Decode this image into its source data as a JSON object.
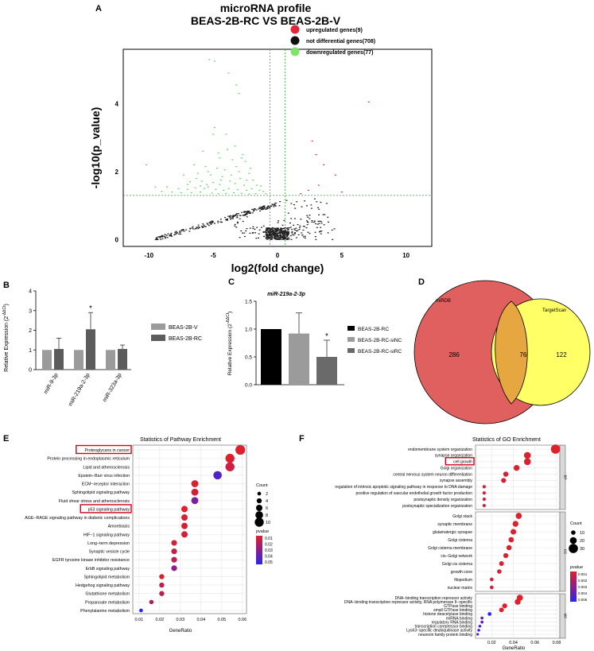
{
  "panels": {
    "A": "A",
    "B": "B",
    "C": "C",
    "D": "D",
    "E": "E",
    "F": "F"
  },
  "chart_data": [
    {
      "id": "A",
      "type": "scatter",
      "title": "microRNA profile",
      "subtitle": "BEAS-2B-RC VS BEAS-2B-V",
      "xlabel": "log2(fold change)",
      "ylabel": "-log10(p_value)",
      "xlim": [
        -12,
        12
      ],
      "ylim": [
        -0.2,
        5.6
      ],
      "xticks": [
        -10,
        -5,
        0,
        5,
        10
      ],
      "yticks": [
        0,
        2,
        4
      ],
      "thresholds": {
        "x": [
          -0.58,
          0.58
        ],
        "y": 1.3
      },
      "legend": [
        "upregulated genes(9)",
        "not differential genes(708)",
        "downregulated genes(77)"
      ],
      "colors": {
        "up": "#e32636",
        "not": "#111111",
        "down": "#5fd35f"
      },
      "series": [
        {
          "name": "upregulated genes(9)",
          "points": [
            [
              7.1,
              4.05
            ],
            [
              2.7,
              2.9
            ],
            [
              3.0,
              2.5
            ],
            [
              3.6,
              2.2
            ],
            [
              4.5,
              1.9
            ],
            [
              3.2,
              1.6
            ],
            [
              5.0,
              1.4
            ],
            [
              2.4,
              1.45
            ],
            [
              1.8,
              1.35
            ]
          ]
        },
        {
          "name": "downregulated genes(77)",
          "points": [
            [
              -5.3,
              5.3
            ],
            [
              -4.9,
              5.25
            ],
            [
              -3.8,
              4.9
            ],
            [
              -3.2,
              4.55
            ],
            [
              -3.0,
              4.3
            ],
            [
              -4.9,
              3.3
            ],
            [
              -5.0,
              3.1
            ],
            [
              -4.0,
              3.1
            ],
            [
              -3.9,
              2.65
            ],
            [
              -2.7,
              2.5
            ],
            [
              -5.8,
              2.6
            ],
            [
              -4.5,
              2.4
            ],
            [
              -3.5,
              2.35
            ],
            [
              -2.5,
              2.3
            ],
            [
              -6.5,
              2.2
            ],
            [
              -5.6,
              2.15
            ],
            [
              -4.7,
              2.1
            ],
            [
              -4.1,
              2.05
            ],
            [
              -3.0,
              2.0
            ],
            [
              -2.2,
              1.95
            ],
            [
              -7.3,
              1.9
            ],
            [
              -6.2,
              1.95
            ],
            [
              -5.2,
              1.9
            ],
            [
              -4.3,
              1.85
            ],
            [
              -3.6,
              1.9
            ],
            [
              -2.9,
              1.8
            ],
            [
              -1.9,
              1.75
            ],
            [
              -6.8,
              1.7
            ],
            [
              -5.9,
              1.72
            ],
            [
              -5.0,
              1.68
            ],
            [
              -4.5,
              1.62
            ],
            [
              -3.3,
              1.65
            ],
            [
              -2.6,
              1.6
            ],
            [
              -1.6,
              1.6
            ],
            [
              -10.2,
              2.2
            ],
            [
              -9.5,
              1.55
            ],
            [
              -8.6,
              1.55
            ],
            [
              -7.7,
              1.5
            ],
            [
              -7.0,
              1.48
            ],
            [
              -6.4,
              1.52
            ],
            [
              -5.7,
              1.5
            ],
            [
              -5.4,
              1.55
            ],
            [
              -4.8,
              1.48
            ],
            [
              -4.2,
              1.45
            ],
            [
              -3.8,
              1.5
            ],
            [
              -3.1,
              1.47
            ],
            [
              -2.4,
              1.45
            ],
            [
              -2.0,
              1.5
            ],
            [
              -1.4,
              1.45
            ],
            [
              -1.1,
              1.42
            ],
            [
              -9.0,
              1.42
            ],
            [
              -8.2,
              1.4
            ],
            [
              -7.5,
              1.38
            ],
            [
              -6.7,
              1.38
            ],
            [
              -6.0,
              1.4
            ],
            [
              -5.1,
              1.37
            ],
            [
              -4.6,
              1.35
            ],
            [
              -4.0,
              1.36
            ],
            [
              -3.4,
              1.38
            ],
            [
              -2.8,
              1.36
            ],
            [
              -2.2,
              1.34
            ],
            [
              -1.7,
              1.35
            ],
            [
              -0.9,
              1.35
            ],
            [
              -6.3,
              1.8
            ],
            [
              -4.4,
              1.75
            ],
            [
              -3.7,
              1.72
            ],
            [
              -2.4,
              1.75
            ],
            [
              -5.5,
              1.62
            ],
            [
              -7.0,
              1.62
            ],
            [
              -3.2,
              2.15
            ],
            [
              -2.1,
              2.1
            ],
            [
              -4.6,
              2.55
            ],
            [
              -3.3,
              2.75
            ],
            [
              -5.4,
              2.0
            ],
            [
              -2.8,
              2.4
            ],
            [
              -6.0,
              1.58
            ],
            [
              -1.3,
              1.58
            ]
          ]
        },
        {
          "name": "not differential genes(708)"
        }
      ]
    },
    {
      "id": "B",
      "type": "bar",
      "ylabel": "Relative Expression (2^-ΔΔCt)",
      "ylim": [
        0,
        4
      ],
      "yticks": [
        0,
        1,
        2,
        3,
        4
      ],
      "categories": [
        "miR-9-3p",
        "miR-219a-2-3p",
        "miR-323a-3p"
      ],
      "series": [
        {
          "name": "BEAS-2B-V",
          "values": [
            1.0,
            1.0,
            1.0
          ],
          "errors": [
            0,
            0,
            0
          ],
          "color": "#9b9b9b"
        },
        {
          "name": "BEAS-2B-RC",
          "values": [
            1.05,
            2.05,
            1.05
          ],
          "errors": [
            0.55,
            0.85,
            0.2
          ],
          "color": "#5c5c5c"
        }
      ],
      "annotations": [
        {
          "category": "miR-219a-2-3p",
          "series": "BEAS-2B-RC",
          "text": "*"
        }
      ]
    },
    {
      "id": "C",
      "type": "bar",
      "title": "miR-219a-2-3p",
      "ylabel": "Relative Expression (2^-ΔΔCt)",
      "ylim": [
        0,
        1.5
      ],
      "yticks": [
        "0.0",
        "0.5",
        "1.0",
        "1.5"
      ],
      "categories": [
        "BEAS-2B-RC",
        "BEAS-2B-RC-siNC",
        "BEAS-2B-RC-siRC"
      ],
      "values": [
        1.0,
        0.92,
        0.5
      ],
      "errors": [
        0,
        0.37,
        0.3
      ],
      "colors": [
        "#000000",
        "#9b9b9b",
        "#6a6a6a"
      ],
      "annotations": [
        {
          "category": "BEAS-2B-RC-siRC",
          "text": "*"
        }
      ]
    },
    {
      "id": "D",
      "type": "venn",
      "sets": [
        {
          "name": "miRDB",
          "only": 286,
          "color": "#e06060"
        },
        {
          "name": "TargetScan",
          "only": 122,
          "color": "#ffff66"
        }
      ],
      "intersection": 76
    },
    {
      "id": "E",
      "type": "scatter",
      "title": "Statistics of Pathway Enrichment",
      "xlabel": "GeneRatio",
      "xlim": [
        0.007,
        0.062
      ],
      "xticks": [
        "0.01",
        "0.02",
        "0.03",
        "0.04",
        "0.05",
        "0.06"
      ],
      "categories": [
        "Proteoglycans in cancer",
        "Protein processing in endoplasmic reticulum",
        "Lipid and atherosclerosis",
        "Epstein−Barr virus infection",
        "ECM−receptor interaction",
        "Sphingolipid signaling pathway",
        "Fluid shear stress and atherosclerosis",
        "p53 signaling pathway",
        "AGE−RAGE signaling pathway in diabetic complications",
        "Amoebiasis",
        "HIF−1 signaling pathway",
        "Long−term depression",
        "Synaptic vesicle cycle",
        "EGFR tyrosine kinase inhibitor resistance",
        "ErbB signaling pathway",
        "Sphingolipid metabolism",
        "Hedgehog signaling pathway",
        "Glutathione metabolism",
        "Propanoate metabolism",
        "Phenylalanine metabolism"
      ],
      "gene_ratio": [
        0.059,
        0.054,
        0.054,
        0.048,
        0.037,
        0.037,
        0.037,
        0.032,
        0.032,
        0.032,
        0.032,
        0.027,
        0.027,
        0.027,
        0.027,
        0.021,
        0.021,
        0.021,
        0.016,
        0.011
      ],
      "count": [
        11,
        10,
        10,
        9,
        7,
        7,
        7,
        6,
        6,
        6,
        6,
        5,
        5,
        5,
        5,
        4,
        4,
        4,
        3,
        2
      ],
      "pvalue": [
        0.003,
        0.003,
        0.008,
        0.04,
        0.003,
        0.006,
        0.03,
        0.002,
        0.005,
        0.006,
        0.006,
        0.006,
        0.01,
        0.012,
        0.025,
        0.004,
        0.01,
        0.012,
        0.015,
        0.05
      ],
      "highlighted": [
        "Proteoglycans in cancer",
        "p53 signaling pathway"
      ],
      "legend_count": {
        "title": "Count",
        "values": [
          2,
          4,
          6,
          8,
          10
        ]
      },
      "legend_pvalue": {
        "title": "pvalue",
        "ticks": [
          "0.01",
          "0.02",
          "0.03",
          "0.04",
          "0.05"
        ]
      }
    },
    {
      "id": "F",
      "type": "scatter",
      "title": "Statistics of GO Enrichment",
      "xlabel": "GeneRatio",
      "xlim": [
        0.005,
        0.083
      ],
      "xticks": [
        "0.02",
        "0.04",
        "0.06",
        "0.08"
      ],
      "groups": [
        {
          "name": "BP",
          "categories": [
            "endomembrane system organization",
            "synapse organization",
            "cell growth",
            "Golgi organization",
            "central nervous system neuron differentiation",
            "synapse assembly",
            "regulation of intrinsic apoptotic signaling pathway in response to DNA damage",
            "positive regulation of vascular endothelial growth factor production",
            "postsynaptic density organization",
            "postsynaptic specialization organization"
          ],
          "gene_ratio": [
            0.079,
            0.053,
            0.053,
            0.043,
            0.033,
            0.031,
            0.013,
            0.013,
            0.013,
            0.013
          ],
          "count": [
            30,
            20,
            20,
            16,
            13,
            12,
            5,
            5,
            5,
            5
          ],
          "pvalue": [
            0.0001,
            0.0002,
            0.0002,
            0.0003,
            0.0004,
            0.0004,
            0.0005,
            0.0005,
            0.0005,
            0.0005
          ]
        },
        {
          "name": "CC",
          "categories": [
            "Golgi stack",
            "synaptic membrane",
            "glutamatergic synapse",
            "Golgi cisterna",
            "Golgi cisterna membrane",
            "cis−Golgi network",
            "Golgi cis cisterna",
            "growth cone",
            "filopodium",
            "nuclear matrix"
          ],
          "gene_ratio": [
            0.045,
            0.042,
            0.04,
            0.038,
            0.036,
            0.033,
            0.029,
            0.027,
            0.02,
            0.02
          ],
          "count": [
            17,
            16,
            15,
            14,
            13,
            12,
            11,
            10,
            7,
            7
          ],
          "pvalue": [
            0.0001,
            0.0001,
            0.0002,
            0.0002,
            0.0002,
            0.0003,
            0.0003,
            0.0003,
            0.0004,
            0.0004
          ]
        },
        {
          "name": "MF",
          "categories": [
            "DNA−binding transcription repressor activity",
            "DNA−binding transcription repressor activity, RNA polymerase II−specific",
            "GTPase binding",
            "small GTPase binding",
            "histone deacetylase binding",
            "miRNA binding",
            "regulatory RNA binding",
            "transcription corepressor binding",
            "Lys63−specific deubiquitinase activity",
            "neurexin family protein binding"
          ],
          "gene_ratio": [
            0.046,
            0.044,
            0.032,
            0.029,
            0.018,
            0.011,
            0.011,
            0.009,
            0.008,
            0.007
          ],
          "count": [
            17,
            16,
            12,
            11,
            7,
            4,
            4,
            3,
            3,
            2
          ],
          "pvalue": [
            0.0001,
            0.0001,
            0.0002,
            0.0002,
            0.005,
            0.0035,
            0.0035,
            0.004,
            0.0045,
            0.0042
          ]
        }
      ],
      "highlighted": [
        "cell growth"
      ],
      "legend_count": {
        "title": "Count",
        "values": [
          10,
          20,
          30
        ]
      },
      "legend_pvalue": {
        "title": "pvalue",
        "ticks": [
          "0.001",
          "0.002",
          "0.003",
          "0.004",
          "0.005"
        ]
      }
    }
  ]
}
